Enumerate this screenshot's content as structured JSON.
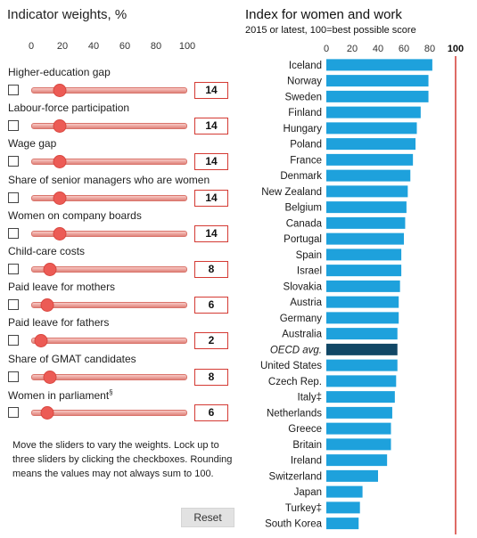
{
  "weights_panel": {
    "title": "Indicator weights, %",
    "axis_ticks": [
      "0",
      "20",
      "40",
      "60",
      "80",
      "100"
    ],
    "axis_max": 100,
    "sliders": [
      {
        "label": "Higher-education gap",
        "value": 14,
        "checked": false
      },
      {
        "label": "Labour-force participation",
        "value": 14,
        "checked": false
      },
      {
        "label": "Wage gap",
        "value": 14,
        "checked": false
      },
      {
        "label": "Share of senior managers who are women",
        "value": 14,
        "checked": false
      },
      {
        "label": "Women on company boards",
        "value": 14,
        "checked": false
      },
      {
        "label": "Child-care costs",
        "value": 8,
        "checked": false
      },
      {
        "label": "Paid leave for mothers",
        "value": 6,
        "checked": false
      },
      {
        "label": "Paid leave for fathers",
        "value": 2,
        "checked": false
      },
      {
        "label": "Share of GMAT candidates",
        "value": 8,
        "checked": false
      },
      {
        "label": "Women in parliament",
        "label_mark": "§",
        "value": 6,
        "checked": false
      }
    ],
    "instructions": "Move the sliders to vary the weights. Lock up to three sliders by clicking the checkboxes. Rounding means the values may not always sum to 100.",
    "reset_label": "Reset"
  },
  "chart_data": {
    "type": "bar",
    "orientation": "horizontal",
    "title": "Index for women and work",
    "subtitle": "2015 or latest, 100=best possible score",
    "x_ticks": [
      0,
      20,
      40,
      60,
      80
    ],
    "x_max_label": "100",
    "xlim": [
      0,
      100
    ],
    "categories": [
      "Iceland",
      "Norway",
      "Sweden",
      "Finland",
      "Hungary",
      "Poland",
      "France",
      "Denmark",
      "New Zealand",
      "Belgium",
      "Canada",
      "Portugal",
      "Spain",
      "Israel",
      "Slovakia",
      "Austria",
      "Germany",
      "Australia",
      "OECD avg.",
      "United States",
      "Czech Rep.",
      "Italy‡",
      "Netherlands",
      "Greece",
      "Britain",
      "Ireland",
      "Switzerland",
      "Japan",
      "Turkey‡",
      "South Korea"
    ],
    "values": [
      82,
      79,
      79,
      73,
      70,
      69,
      67,
      65,
      63,
      62,
      61,
      60,
      58,
      58,
      57,
      56,
      56,
      55,
      55,
      55,
      54,
      53,
      51,
      50,
      50,
      47,
      40,
      28,
      26,
      25
    ],
    "highlight": "OECD avg.",
    "colors": {
      "bar": "#1ea1dc",
      "highlight_bar": "#114766",
      "max_line": "#d43a33"
    },
    "grid": false
  },
  "colors": {
    "slider_track": "#f2a9a3",
    "slider_handle": "#ec5b55",
    "value_box_border": "#d43a33",
    "reset_button_bg": "#e2e2e2"
  }
}
